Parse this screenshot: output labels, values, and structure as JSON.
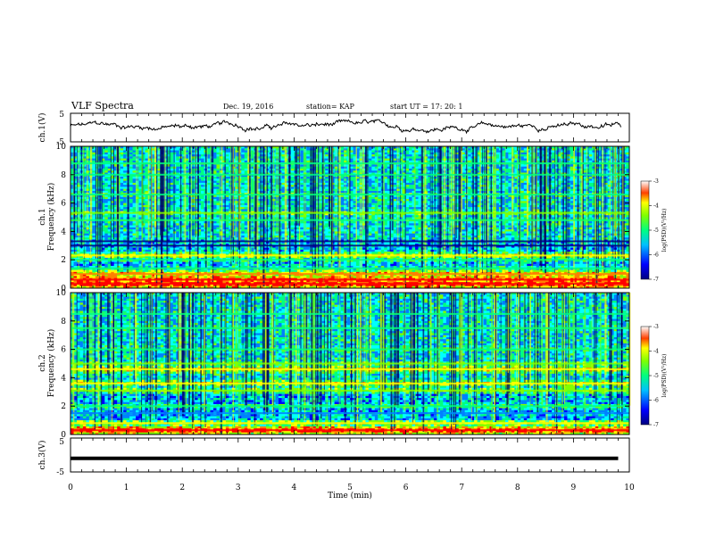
{
  "header": {
    "title": "VLF Spectra",
    "date": "Dec. 19, 2016",
    "station": "station= KAP",
    "start": "start  UT =   17: 20: 1"
  },
  "colors": {
    "colormap": [
      "#000080",
      "#0000ff",
      "#0080ff",
      "#00ffff",
      "#00ff80",
      "#80ff00",
      "#ffff00",
      "#ff8000",
      "#ff0000",
      "#ffffff"
    ],
    "trace": "#000000"
  },
  "chart_data": [
    {
      "type": "line",
      "name": "waveform-ch1",
      "ylabel": "ch.1(V)",
      "ylim": [
        -5,
        5
      ],
      "yticks": [
        "5",
        "-5"
      ],
      "xlim": [
        0,
        10
      ],
      "approx_level": 0.5,
      "note_series": "noisy waveform fluctuating around 0 to +2 V"
    },
    {
      "type": "heatmap",
      "name": "spectrogram-ch1",
      "ylabel_line1": "ch.1",
      "ylabel_line2": "Frequency (kHz)",
      "ylim": [
        0,
        10
      ],
      "yticks": [
        "0",
        "2",
        "4",
        "6",
        "8",
        "10"
      ],
      "xlim": [
        0,
        10
      ],
      "colorbar": {
        "label": "log(PSD)(V²/Hz)",
        "range": [
          -7,
          -3
        ],
        "ticks": [
          "-3",
          "-4",
          "-5",
          "-6",
          "-7"
        ]
      },
      "bands_khz": [
        {
          "f": 0.3,
          "level": 1.0
        },
        {
          "f": 0.6,
          "level": 0.95
        },
        {
          "f": 1.0,
          "level": 0.8
        },
        {
          "f": 1.4,
          "level": 0.5
        },
        {
          "f": 2.0,
          "level": 0.55
        },
        {
          "f": 2.3,
          "level": 0.7
        },
        {
          "f": 3.0,
          "level": 0.1
        },
        {
          "f": 3.3,
          "level": 0.05
        },
        {
          "f": 4.8,
          "level": 0.55
        },
        {
          "f": 5.3,
          "level": 0.6
        },
        {
          "f": 6.6,
          "level": 0.55
        },
        {
          "f": 8.0,
          "level": 0.5
        },
        {
          "f": 8.8,
          "level": 0.5
        }
      ]
    },
    {
      "type": "heatmap",
      "name": "spectrogram-ch2",
      "ylabel_line1": "ch.2",
      "ylabel_line2": "Frequency (kHz)",
      "ylim": [
        0,
        10
      ],
      "yticks": [
        "0",
        "2",
        "4",
        "6",
        "8",
        "10"
      ],
      "xlim": [
        0,
        10
      ],
      "colorbar": {
        "label": "log(PSD)(V²/Hz)",
        "range": [
          -7,
          -3
        ],
        "ticks": [
          "-3",
          "-4",
          "-5",
          "-6",
          "-7"
        ]
      },
      "bands_khz": [
        {
          "f": 0.3,
          "level": 0.95
        },
        {
          "f": 0.8,
          "level": 0.7
        },
        {
          "f": 1.5,
          "level": 0.3
        },
        {
          "f": 2.0,
          "level": 0.55
        },
        {
          "f": 3.1,
          "level": 0.65
        },
        {
          "f": 3.6,
          "level": 0.7
        },
        {
          "f": 4.6,
          "level": 0.75
        },
        {
          "f": 5.0,
          "level": 0.6
        },
        {
          "f": 6.0,
          "level": 0.55
        },
        {
          "f": 7.5,
          "level": 0.5
        },
        {
          "f": 8.5,
          "level": 0.45
        }
      ]
    },
    {
      "type": "line",
      "name": "waveform-ch3",
      "ylabel": "ch.3(V)",
      "ylim": [
        -5,
        5
      ],
      "yticks": [
        "5",
        "-5"
      ],
      "xlim": [
        0,
        10
      ],
      "x": [
        0,
        9.8
      ],
      "y": [
        -1,
        -1
      ]
    }
  ],
  "xaxis": {
    "label": "Time  (min)",
    "ticks": [
      "0",
      "1",
      "2",
      "3",
      "4",
      "5",
      "6",
      "7",
      "8",
      "9",
      "10"
    ]
  }
}
